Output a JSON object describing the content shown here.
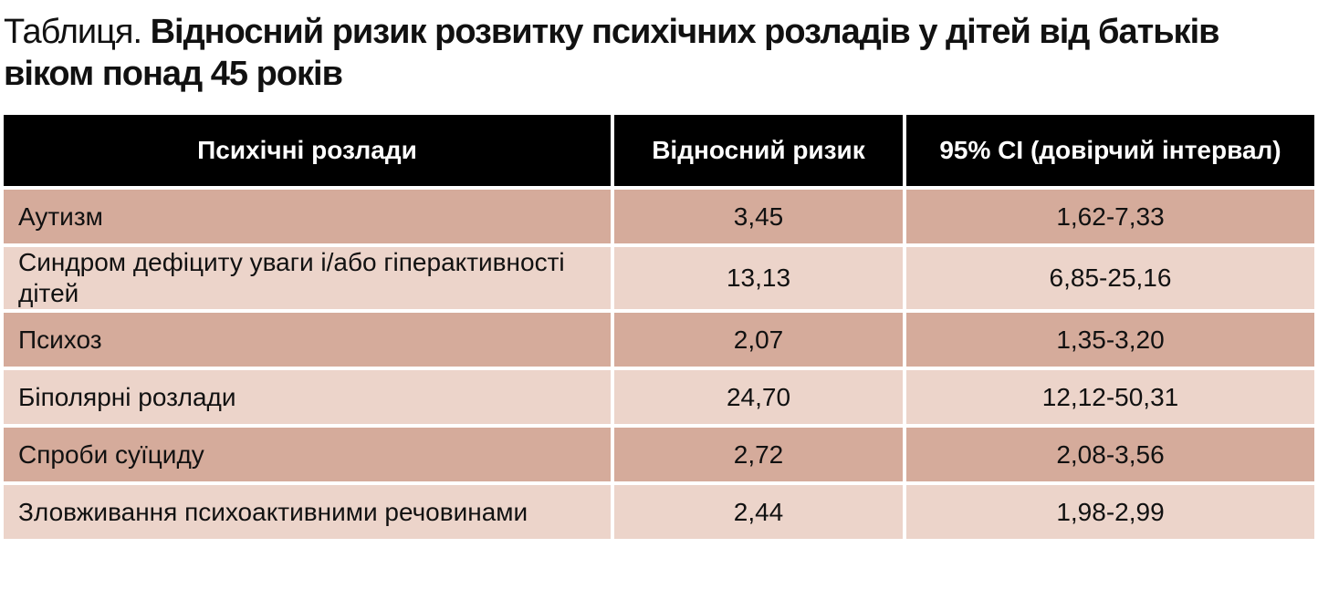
{
  "header": {
    "label": "Таблиця.",
    "title": "Відносний ризик розвитку психічних розладів у дітей від батьків віком понад 45 років"
  },
  "table": {
    "columns": [
      "Психічні розлади",
      "Відносний ризик",
      "95% CI (довірчий інтервал)"
    ],
    "rows": [
      [
        "Аутизм",
        "3,45",
        "1,62-7,33"
      ],
      [
        "Синдром дефіциту уваги і/або гіперактивності дітей",
        "13,13",
        "6,85-25,16"
      ],
      [
        "Психоз",
        "2,07",
        "1,35-3,20"
      ],
      [
        "Біполярні розлади",
        "24,70",
        "12,12-50,31"
      ],
      [
        "Спроби суїциду",
        "2,72",
        "2,08-3,56"
      ],
      [
        "Зловживання психоактивними речовинами",
        "2,44",
        "1,98-2,99"
      ]
    ]
  }
}
